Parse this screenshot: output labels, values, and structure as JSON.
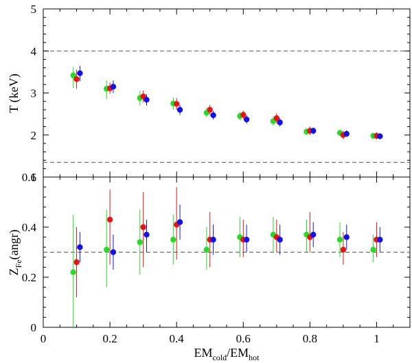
{
  "chart_data": {
    "type": "scatter",
    "x_axis": {
      "label_main_1": "EM",
      "label_sub_1": "cold",
      "label_sep": "/EM",
      "label_sub_2": "hot",
      "range": [
        0,
        1.1
      ],
      "tick_values": [
        0,
        0.2,
        0.4,
        0.6,
        0.8,
        1
      ],
      "tick_labels": [
        "0",
        "0.2",
        "0.4",
        "0.6",
        "0.8",
        "1"
      ]
    },
    "series_colors": [
      "#22dd22",
      "#ee1111",
      "#1111ee"
    ],
    "panels": [
      {
        "id": "temperature",
        "ylabel": "T (keV)",
        "ylim": [
          1,
          5
        ],
        "y_tick_values": [
          1,
          2,
          3,
          4,
          5
        ],
        "y_tick_labels": [
          "1",
          "2",
          "3",
          "4",
          "5"
        ],
        "reference_lines": [
          4.0,
          1.35
        ],
        "series": [
          {
            "color": "#22dd22",
            "points": [
              {
                "x": 0.09,
                "y": 3.42,
                "lo": 3.12,
                "hi": 3.62
              },
              {
                "x": 0.19,
                "y": 3.1,
                "lo": 2.85,
                "hi": 3.3
              },
              {
                "x": 0.29,
                "y": 2.88,
                "lo": 2.7,
                "hi": 3.05
              },
              {
                "x": 0.39,
                "y": 2.75,
                "lo": 2.6,
                "hi": 2.9
              },
              {
                "x": 0.49,
                "y": 2.53,
                "lo": 2.42,
                "hi": 2.65
              },
              {
                "x": 0.59,
                "y": 2.45,
                "lo": 2.35,
                "hi": 2.55
              },
              {
                "x": 0.69,
                "y": 2.33,
                "lo": 2.22,
                "hi": 2.45
              },
              {
                "x": 0.79,
                "y": 2.08,
                "lo": 2.0,
                "hi": 2.16
              },
              {
                "x": 0.89,
                "y": 2.05,
                "lo": 1.97,
                "hi": 2.13
              },
              {
                "x": 0.99,
                "y": 1.98,
                "lo": 1.92,
                "hi": 2.05
              }
            ]
          },
          {
            "color": "#ee1111",
            "points": [
              {
                "x": 0.1,
                "y": 3.33,
                "lo": 3.1,
                "hi": 3.56
              },
              {
                "x": 0.2,
                "y": 3.11,
                "lo": 2.98,
                "hi": 3.25
              },
              {
                "x": 0.3,
                "y": 2.92,
                "lo": 2.78,
                "hi": 3.06
              },
              {
                "x": 0.4,
                "y": 2.74,
                "lo": 2.6,
                "hi": 2.88
              },
              {
                "x": 0.5,
                "y": 2.6,
                "lo": 2.48,
                "hi": 2.72
              },
              {
                "x": 0.6,
                "y": 2.48,
                "lo": 2.38,
                "hi": 2.58
              },
              {
                "x": 0.7,
                "y": 2.4,
                "lo": 2.28,
                "hi": 2.52
              },
              {
                "x": 0.8,
                "y": 2.1,
                "lo": 2.0,
                "hi": 2.2
              },
              {
                "x": 0.9,
                "y": 2.0,
                "lo": 1.9,
                "hi": 2.1
              },
              {
                "x": 1.0,
                "y": 1.98,
                "lo": 1.9,
                "hi": 2.06
              }
            ]
          },
          {
            "color": "#1111ee",
            "points": [
              {
                "x": 0.11,
                "y": 3.47,
                "lo": 3.28,
                "hi": 3.65
              },
              {
                "x": 0.21,
                "y": 3.15,
                "lo": 3.0,
                "hi": 3.3
              },
              {
                "x": 0.31,
                "y": 2.84,
                "lo": 2.7,
                "hi": 2.97
              },
              {
                "x": 0.41,
                "y": 2.6,
                "lo": 2.48,
                "hi": 2.72
              },
              {
                "x": 0.51,
                "y": 2.47,
                "lo": 2.37,
                "hi": 2.57
              },
              {
                "x": 0.61,
                "y": 2.37,
                "lo": 2.27,
                "hi": 2.47
              },
              {
                "x": 0.71,
                "y": 2.3,
                "lo": 2.2,
                "hi": 2.4
              },
              {
                "x": 0.81,
                "y": 2.1,
                "lo": 2.02,
                "hi": 2.18
              },
              {
                "x": 0.91,
                "y": 2.03,
                "lo": 1.95,
                "hi": 2.11
              },
              {
                "x": 1.01,
                "y": 1.97,
                "lo": 1.9,
                "hi": 2.04
              }
            ]
          }
        ]
      },
      {
        "id": "abundance",
        "ylabel_main": "Z",
        "ylabel_sub": "Fe",
        "ylabel_rest": "(angr)",
        "ylim": [
          0,
          0.6
        ],
        "y_tick_values": [
          0,
          0.2,
          0.4,
          0.6
        ],
        "y_tick_labels": [
          "0",
          "0.2",
          "0.4",
          "0.6"
        ],
        "reference_lines": [
          0.3
        ],
        "series": [
          {
            "color": "#22dd22",
            "points": [
              {
                "x": 0.09,
                "y": 0.22,
                "lo": 0.0,
                "hi": 0.45
              },
              {
                "x": 0.19,
                "y": 0.31,
                "lo": 0.16,
                "hi": 0.47
              },
              {
                "x": 0.29,
                "y": 0.34,
                "lo": 0.21,
                "hi": 0.47
              },
              {
                "x": 0.39,
                "y": 0.35,
                "lo": 0.25,
                "hi": 0.45
              },
              {
                "x": 0.49,
                "y": 0.31,
                "lo": 0.23,
                "hi": 0.4
              },
              {
                "x": 0.59,
                "y": 0.36,
                "lo": 0.28,
                "hi": 0.44
              },
              {
                "x": 0.69,
                "y": 0.37,
                "lo": 0.3,
                "hi": 0.44
              },
              {
                "x": 0.79,
                "y": 0.37,
                "lo": 0.3,
                "hi": 0.43
              },
              {
                "x": 0.89,
                "y": 0.35,
                "lo": 0.28,
                "hi": 0.42
              },
              {
                "x": 0.99,
                "y": 0.31,
                "lo": 0.26,
                "hi": 0.37
              }
            ]
          },
          {
            "color": "#ee1111",
            "points": [
              {
                "x": 0.1,
                "y": 0.26,
                "lo": 0.12,
                "hi": 0.4
              },
              {
                "x": 0.2,
                "y": 0.43,
                "lo": 0.25,
                "hi": 0.55
              },
              {
                "x": 0.3,
                "y": 0.4,
                "lo": 0.24,
                "hi": 0.54
              },
              {
                "x": 0.4,
                "y": 0.41,
                "lo": 0.27,
                "hi": 0.56
              },
              {
                "x": 0.5,
                "y": 0.35,
                "lo": 0.24,
                "hi": 0.46
              },
              {
                "x": 0.6,
                "y": 0.35,
                "lo": 0.28,
                "hi": 0.43
              },
              {
                "x": 0.7,
                "y": 0.36,
                "lo": 0.3,
                "hi": 0.43
              },
              {
                "x": 0.8,
                "y": 0.36,
                "lo": 0.3,
                "hi": 0.46
              },
              {
                "x": 0.9,
                "y": 0.31,
                "lo": 0.25,
                "hi": 0.38
              },
              {
                "x": 1.0,
                "y": 0.35,
                "lo": 0.28,
                "hi": 0.42
              }
            ]
          },
          {
            "color": "#1111ee",
            "points": [
              {
                "x": 0.11,
                "y": 0.32,
                "lo": 0.26,
                "hi": 0.38
              },
              {
                "x": 0.21,
                "y": 0.3,
                "lo": 0.23,
                "hi": 0.37
              },
              {
                "x": 0.31,
                "y": 0.37,
                "lo": 0.3,
                "hi": 0.43
              },
              {
                "x": 0.41,
                "y": 0.42,
                "lo": 0.35,
                "hi": 0.49
              },
              {
                "x": 0.51,
                "y": 0.35,
                "lo": 0.29,
                "hi": 0.41
              },
              {
                "x": 0.61,
                "y": 0.35,
                "lo": 0.3,
                "hi": 0.41
              },
              {
                "x": 0.71,
                "y": 0.35,
                "lo": 0.29,
                "hi": 0.41
              },
              {
                "x": 0.81,
                "y": 0.37,
                "lo": 0.32,
                "hi": 0.42
              },
              {
                "x": 0.91,
                "y": 0.36,
                "lo": 0.31,
                "hi": 0.41
              },
              {
                "x": 1.01,
                "y": 0.35,
                "lo": 0.3,
                "hi": 0.4
              }
            ]
          }
        ]
      }
    ]
  }
}
